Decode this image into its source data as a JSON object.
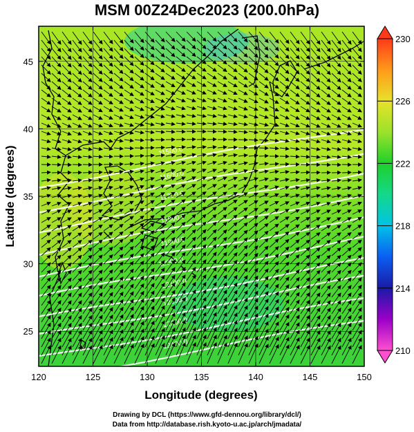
{
  "title": "MSM 00Z24Dec2023 (200.0hPa)",
  "x_axis": {
    "label": "Longitude (degrees)",
    "range": [
      120,
      150
    ],
    "ticks": [
      120,
      125,
      130,
      135,
      140,
      145,
      150
    ]
  },
  "y_axis": {
    "label": "Latitude  (degrees)",
    "range": [
      22.4,
      47.6
    ],
    "ticks": [
      25,
      30,
      35,
      40,
      45
    ]
  },
  "colorbar": {
    "range": [
      210,
      230
    ],
    "ticks": [
      210,
      214,
      218,
      222,
      226,
      230
    ],
    "colors": [
      "#ff4fd0",
      "#9b00c8",
      "#1a1aa6",
      "#0b5ef2",
      "#00c3e6",
      "#14d88a",
      "#1fd02a",
      "#9be22b",
      "#e8e22a",
      "#ff9a1a",
      "#ff3a1a"
    ]
  },
  "contours": {
    "color": "#ffffff",
    "labels": [
      {
        "text": "11500.0",
        "lon": 131.1,
        "lat": 38.0
      },
      {
        "text": "11600.0",
        "lon": 131.2,
        "lat": 36.2
      },
      {
        "text": "11700.0",
        "lon": 131.2,
        "lat": 34.7
      },
      {
        "text": "11800.0",
        "lon": 131.3,
        "lat": 33.0
      },
      {
        "text": "11900.0",
        "lon": 131.3,
        "lat": 31.3
      },
      {
        "text": "12000.0",
        "lon": 131.1,
        "lat": 29.8
      },
      {
        "text": "12100.0",
        "lon": 131.4,
        "lat": 28.2
      },
      {
        "text": "12200.0",
        "lon": 131.5,
        "lat": 26.9
      },
      {
        "text": "12300.0",
        "lon": 131.5,
        "lat": 25.3
      },
      {
        "text": "12400.0",
        "lon": 131.5,
        "lat": 23.7
      }
    ]
  },
  "footer": {
    "line1": "Drawing by DCL (https://www.gfd-dennou.org/library/dcl/)",
    "line2": "Data from http://database.rish.kyoto-u.ac.jp/arch/jmadata/"
  }
}
